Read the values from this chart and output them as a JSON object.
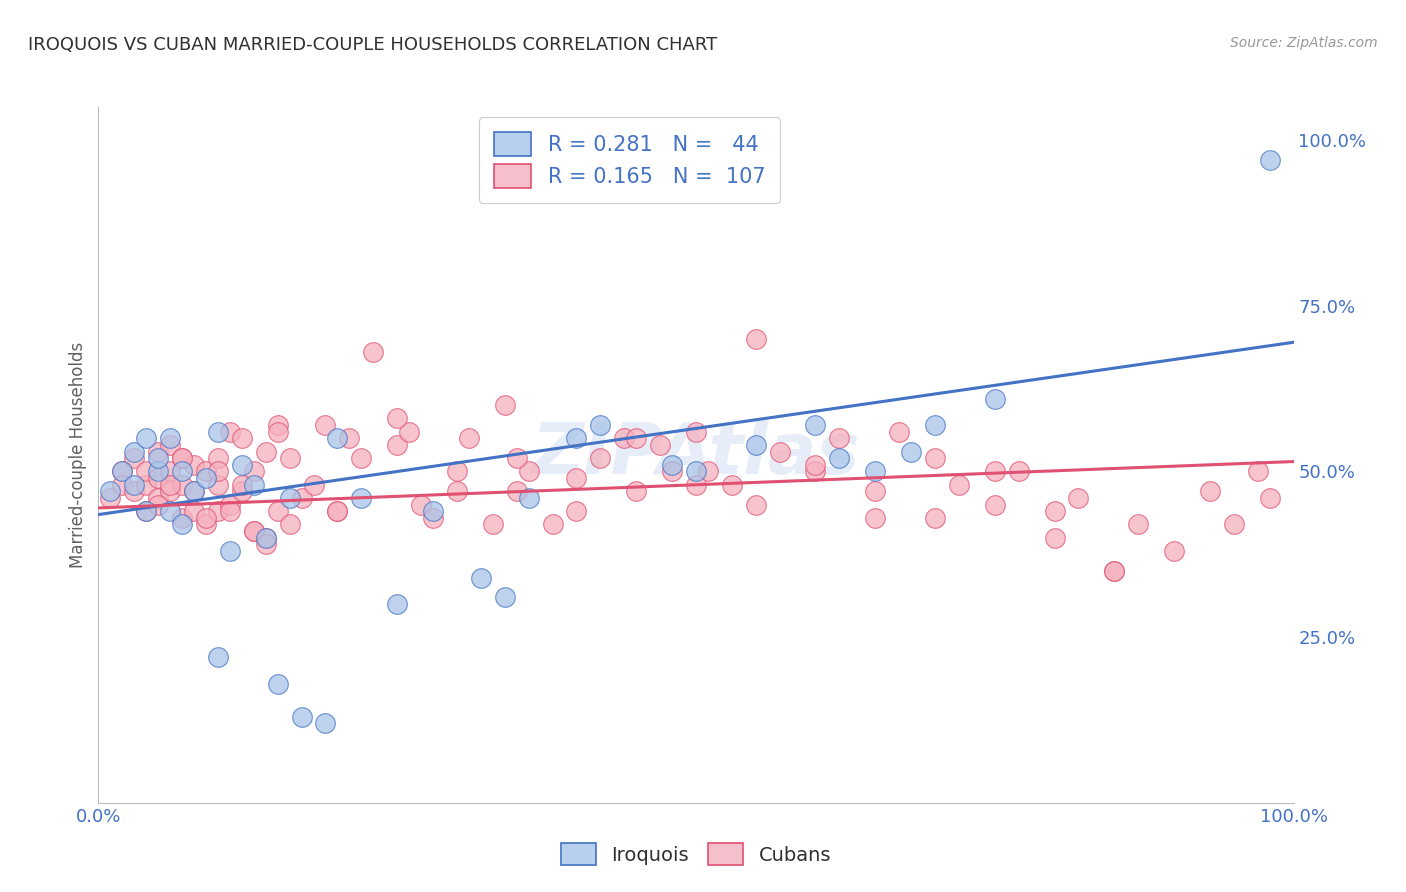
{
  "title": "IROQUOIS VS CUBAN MARRIED-COUPLE HOUSEHOLDS CORRELATION CHART",
  "source": "Source: ZipAtlas.com",
  "ylabel": "Married-couple Households",
  "iroquois_R": 0.281,
  "iroquois_N": 44,
  "cubans_R": 0.165,
  "cubans_N": 107,
  "iroquois_color": "#a8c4e8",
  "cubans_color": "#f5b0be",
  "iroquois_line_color": "#4472c4",
  "cubans_line_color": "#e05070",
  "legend_iroquois_fill": "#b8d0ed",
  "legend_cubans_fill": "#f5c0cc",
  "bg_color": "#ffffff",
  "grid_color": "#d0d0d0",
  "axis_label_color": "#4472c4",
  "ytick_labels": [
    "25.0%",
    "50.0%",
    "75.0%",
    "100.0%"
  ],
  "ytick_values": [
    0.25,
    0.5,
    0.75,
    1.0
  ],
  "xlim": [
    0.0,
    1.0
  ],
  "ylim": [
    0.0,
    1.05
  ],
  "watermark": "ZIPAtlas",
  "iroquois_x": [
    0.01,
    0.02,
    0.03,
    0.03,
    0.04,
    0.04,
    0.05,
    0.05,
    0.06,
    0.06,
    0.07,
    0.07,
    0.08,
    0.09,
    0.1,
    0.11,
    0.12,
    0.13,
    0.14,
    0.16,
    0.17,
    0.19,
    0.2,
    0.22,
    0.25,
    0.28,
    0.32,
    0.34,
    0.36,
    0.4,
    0.42,
    0.48,
    0.5,
    0.55,
    0.6,
    0.62,
    0.65,
    0.68,
    0.7,
    0.75,
    0.35,
    0.98,
    0.1,
    0.15
  ],
  "iroquois_y": [
    0.47,
    0.5,
    0.53,
    0.48,
    0.55,
    0.44,
    0.5,
    0.52,
    0.55,
    0.44,
    0.5,
    0.42,
    0.47,
    0.49,
    0.56,
    0.38,
    0.51,
    0.48,
    0.4,
    0.46,
    0.13,
    0.12,
    0.55,
    0.46,
    0.3,
    0.44,
    0.34,
    0.31,
    0.46,
    0.55,
    0.57,
    0.51,
    0.5,
    0.54,
    0.57,
    0.52,
    0.5,
    0.53,
    0.57,
    0.61,
    0.97,
    0.97,
    0.22,
    0.18
  ],
  "cubans_x": [
    0.01,
    0.02,
    0.02,
    0.03,
    0.03,
    0.04,
    0.04,
    0.04,
    0.05,
    0.05,
    0.05,
    0.06,
    0.06,
    0.06,
    0.07,
    0.07,
    0.07,
    0.08,
    0.08,
    0.09,
    0.09,
    0.1,
    0.1,
    0.1,
    0.11,
    0.11,
    0.12,
    0.12,
    0.13,
    0.13,
    0.14,
    0.14,
    0.15,
    0.15,
    0.16,
    0.16,
    0.17,
    0.18,
    0.19,
    0.2,
    0.21,
    0.22,
    0.23,
    0.25,
    0.26,
    0.27,
    0.28,
    0.3,
    0.31,
    0.33,
    0.34,
    0.35,
    0.36,
    0.38,
    0.4,
    0.42,
    0.44,
    0.45,
    0.47,
    0.48,
    0.5,
    0.51,
    0.53,
    0.55,
    0.57,
    0.6,
    0.62,
    0.65,
    0.67,
    0.7,
    0.72,
    0.75,
    0.77,
    0.8,
    0.82,
    0.85,
    0.87,
    0.9,
    0.93,
    0.95,
    0.97,
    0.98,
    0.05,
    0.06,
    0.07,
    0.08,
    0.09,
    0.1,
    0.11,
    0.12,
    0.13,
    0.14,
    0.15,
    0.2,
    0.25,
    0.3,
    0.35,
    0.4,
    0.45,
    0.5,
    0.55,
    0.6,
    0.65,
    0.7,
    0.75,
    0.8,
    0.85
  ],
  "cubans_y": [
    0.46,
    0.5,
    0.48,
    0.47,
    0.52,
    0.44,
    0.48,
    0.5,
    0.46,
    0.49,
    0.53,
    0.47,
    0.5,
    0.54,
    0.43,
    0.48,
    0.52,
    0.44,
    0.51,
    0.42,
    0.5,
    0.44,
    0.48,
    0.52,
    0.56,
    0.45,
    0.47,
    0.55,
    0.41,
    0.5,
    0.4,
    0.53,
    0.44,
    0.57,
    0.42,
    0.52,
    0.46,
    0.48,
    0.57,
    0.44,
    0.55,
    0.52,
    0.68,
    0.54,
    0.56,
    0.45,
    0.43,
    0.5,
    0.55,
    0.42,
    0.6,
    0.47,
    0.5,
    0.42,
    0.44,
    0.52,
    0.55,
    0.47,
    0.54,
    0.5,
    0.56,
    0.5,
    0.48,
    0.7,
    0.53,
    0.5,
    0.55,
    0.43,
    0.56,
    0.52,
    0.48,
    0.45,
    0.5,
    0.4,
    0.46,
    0.35,
    0.42,
    0.38,
    0.47,
    0.42,
    0.5,
    0.46,
    0.45,
    0.48,
    0.52,
    0.47,
    0.43,
    0.5,
    0.44,
    0.48,
    0.41,
    0.39,
    0.56,
    0.44,
    0.58,
    0.47,
    0.52,
    0.49,
    0.55,
    0.48,
    0.45,
    0.51,
    0.47,
    0.43,
    0.5,
    0.44,
    0.35
  ],
  "iro_trend_x0": 0.0,
  "iro_trend_y0": 0.435,
  "iro_trend_x1": 1.0,
  "iro_trend_y1": 0.695,
  "cub_trend_x0": 0.0,
  "cub_trend_y0": 0.445,
  "cub_trend_x1": 1.0,
  "cub_trend_y1": 0.515
}
